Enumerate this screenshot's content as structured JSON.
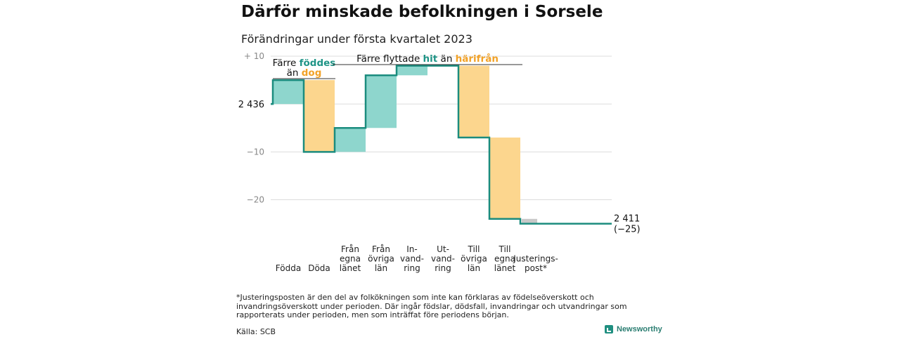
{
  "title": "Därför minskade befolkningen i Sorsele",
  "subtitle": "Förändringar under första kvartalet 2023",
  "colors": {
    "increase": "#8ed6cd",
    "decrease": "#fcd68e",
    "adjustment": "#c8c8c8",
    "line": "#1b8c7e",
    "grid": "#dcdcdc",
    "teal_text": "#1f9486",
    "orange_text": "#f2a227"
  },
  "chart_data": {
    "type": "waterfall",
    "title": "Därför minskade befolkningen i Sorsele",
    "subtitle": "Förändringar under första kvartalet 2023",
    "ylim": [
      -25.5,
      10
    ],
    "yticks": [
      {
        "value": 10,
        "label": "+ 10"
      },
      {
        "value": -10,
        "label": "−10"
      },
      {
        "value": -20,
        "label": "−20"
      }
    ],
    "start": {
      "value": 0,
      "label": "2 436"
    },
    "end": {
      "value": -25,
      "label": "2 411",
      "change_label": "(−25)"
    },
    "steps": [
      {
        "label": [
          "Födda"
        ],
        "change": 5,
        "kind": "increase"
      },
      {
        "label": [
          "Döda"
        ],
        "change": -15,
        "kind": "decrease"
      },
      {
        "label": [
          "Från",
          "egna",
          "länet"
        ],
        "change": 5,
        "kind": "increase"
      },
      {
        "label": [
          "Från",
          "övriga",
          "län"
        ],
        "change": 11,
        "kind": "increase"
      },
      {
        "label": [
          "In-",
          "vand-",
          "ring"
        ],
        "change": 2,
        "kind": "increase"
      },
      {
        "label": [
          "Ut-",
          "vand-",
          "ring"
        ],
        "change": 0,
        "kind": "decrease"
      },
      {
        "label": [
          "Till",
          "övriga",
          "län"
        ],
        "change": -15,
        "kind": "decrease"
      },
      {
        "label": [
          "Till",
          "egna",
          "länet"
        ],
        "change": -17,
        "kind": "decrease"
      },
      {
        "label": [
          "Justerings-",
          "post*"
        ],
        "change": -1,
        "kind": "adjustment"
      }
    ],
    "annotations": [
      {
        "parts": [
          {
            "text": "Färre ",
            "color": "text"
          },
          {
            "text": "föddes",
            "color": "teal"
          }
        ],
        "line2": [
          {
            "text": "än ",
            "color": "text"
          },
          {
            "text": "dog",
            "color": "orange"
          }
        ],
        "from_step": 0,
        "to_step": 1
      },
      {
        "parts": [
          {
            "text": "Färre flyttade ",
            "color": "text"
          },
          {
            "text": "hit",
            "color": "teal"
          },
          {
            "text": " än ",
            "color": "text"
          },
          {
            "text": "härifrån",
            "color": "orange"
          }
        ],
        "from_step": 2,
        "to_step": 7
      }
    ]
  },
  "footnote": "*Justeringsposten är den del av folkökningen som inte kan förklaras av födelseöverskott och invandringsöverskott under perioden. Där ingår födslar, dödsfall, invandringar och utvandringar som rapporterats under perioden, men som inträffat före periodens början.",
  "source": "Källa: SCB",
  "brand": {
    "name": "Newsworthy",
    "icon": "newsworthy-logo-icon"
  }
}
